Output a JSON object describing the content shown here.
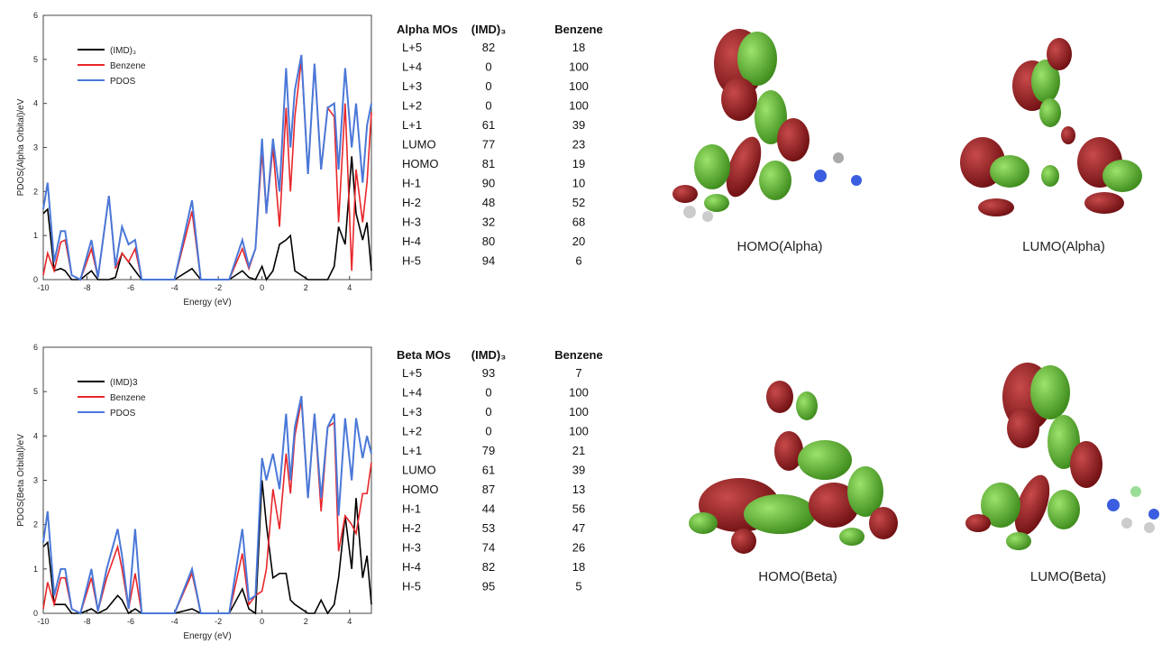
{
  "chart_data": [
    {
      "type": "line",
      "xlabel": "Energy (eV)",
      "ylabel": "PDOS(Alpha Orbital)/eV",
      "xlim": [
        -10,
        5
      ],
      "ylim": [
        0,
        6
      ],
      "xticks": [
        -10,
        -8,
        -6,
        -4,
        -2,
        0,
        2,
        4
      ],
      "yticks": [
        0,
        1,
        2,
        3,
        4,
        5,
        6
      ],
      "legend": "upper left",
      "x": [
        -10,
        -9.8,
        -9.5,
        -9.2,
        -9,
        -8.7,
        -8.3,
        -7.8,
        -7.5,
        -7,
        -6.7,
        -6.4,
        -6.1,
        -5.8,
        -5.5,
        -4,
        -3.2,
        -2.8,
        -1.5,
        -0.9,
        -0.6,
        -0.3,
        0,
        0.2,
        0.5,
        0.8,
        1.1,
        1.3,
        1.5,
        1.8,
        2.1,
        2.4,
        2.7,
        3,
        3.3,
        3.5,
        3.8,
        4.1,
        4.3,
        4.6,
        4.8,
        5
      ],
      "series": [
        {
          "name": "(IMD)₃",
          "color": "#000000",
          "values": [
            1.5,
            1.6,
            0.2,
            0.25,
            0.2,
            0,
            0,
            0.2,
            0,
            0,
            0.05,
            0.6,
            0.4,
            0.2,
            0,
            0,
            0.25,
            0,
            0,
            0.2,
            0.05,
            0,
            0.3,
            0,
            0.2,
            0.8,
            0.9,
            1.0,
            0.2,
            0.1,
            0,
            0,
            0,
            0,
            0.3,
            1.2,
            0.8,
            2.8,
            1.5,
            0.9,
            1.3,
            0.2
          ]
        },
        {
          "name": "Benzene",
          "color": "#e8262a",
          "values": [
            0.1,
            0.6,
            0.2,
            0.85,
            0.9,
            0.1,
            0,
            0.7,
            0.05,
            1.9,
            0.25,
            0.6,
            0.4,
            0.7,
            0,
            0,
            1.55,
            0,
            0,
            0.7,
            0.25,
            0.7,
            2.9,
            1.5,
            3.0,
            1.2,
            3.9,
            2.0,
            3.7,
            5.0,
            2.4,
            4.9,
            2.5,
            3.9,
            3.7,
            1.3,
            4.0,
            0.2,
            2.5,
            1.3,
            2.2,
            3.8
          ]
        },
        {
          "name": "PDOS",
          "color": "#4a78d8",
          "values": [
            1.6,
            2.2,
            0.4,
            1.1,
            1.1,
            0.1,
            0,
            0.9,
            0.05,
            1.9,
            0.3,
            1.2,
            0.8,
            0.9,
            0,
            0,
            1.8,
            0,
            0,
            0.9,
            0.3,
            0.7,
            3.2,
            1.5,
            3.2,
            2.0,
            4.8,
            3.0,
            4.3,
            5.1,
            2.4,
            4.9,
            2.5,
            3.9,
            4.0,
            2.5,
            4.8,
            3.0,
            4.0,
            2.2,
            3.5,
            4.0
          ]
        }
      ]
    },
    {
      "type": "line",
      "xlabel": "Energy (eV)",
      "ylabel": "PDOS(Beta Orbital)/eV",
      "xlim": [
        -10,
        5
      ],
      "ylim": [
        0,
        6
      ],
      "xticks": [
        -10,
        -8,
        -6,
        -4,
        -2,
        0,
        2,
        4
      ],
      "yticks": [
        0,
        1,
        2,
        3,
        4,
        5,
        6
      ],
      "legend": "upper left",
      "x": [
        -10,
        -9.8,
        -9.5,
        -9.2,
        -9,
        -8.7,
        -8.3,
        -7.8,
        -7.5,
        -7.1,
        -6.6,
        -6.4,
        -6.1,
        -5.8,
        -5.5,
        -4,
        -3.2,
        -2.8,
        -1.5,
        -0.9,
        -0.6,
        -0.3,
        0,
        0.2,
        0.5,
        0.8,
        1.1,
        1.3,
        1.5,
        1.8,
        2.1,
        2.4,
        2.7,
        3,
        3.3,
        3.5,
        3.8,
        4.1,
        4.3,
        4.6,
        4.8,
        5
      ],
      "series": [
        {
          "name": "(IMD)3",
          "color": "#000000",
          "values": [
            1.5,
            1.6,
            0.2,
            0.2,
            0.2,
            0,
            0,
            0.1,
            0,
            0.1,
            0.4,
            0.3,
            0,
            0.1,
            0,
            0,
            0.1,
            0,
            0,
            0.55,
            0.1,
            0,
            3.0,
            2.0,
            0.8,
            0.9,
            0.9,
            0.3,
            0.2,
            0.1,
            0,
            0,
            0.3,
            0,
            0.2,
            0.8,
            2.2,
            1.0,
            2.6,
            0.8,
            1.3,
            0.2
          ]
        },
        {
          "name": "Benzene",
          "color": "#e8262a",
          "values": [
            0.1,
            0.7,
            0.2,
            0.8,
            0.8,
            0.1,
            0,
            0.8,
            0.05,
            0.8,
            1.5,
            1.0,
            0.1,
            0.9,
            0,
            0,
            0.9,
            0,
            0,
            1.35,
            0.2,
            0.4,
            0.5,
            1.0,
            2.8,
            1.9,
            3.6,
            2.7,
            4.0,
            4.8,
            2.6,
            4.5,
            2.3,
            4.2,
            4.3,
            1.4,
            2.2,
            2.0,
            1.8,
            2.7,
            2.7,
            3.4
          ]
        },
        {
          "name": "PDOS",
          "color": "#4a78d8",
          "values": [
            1.6,
            2.3,
            0.4,
            1.0,
            1.0,
            0.1,
            0,
            1.0,
            0.05,
            1.0,
            1.9,
            1.3,
            0.1,
            1.9,
            0,
            0,
            1.0,
            0,
            0,
            1.9,
            0.3,
            0.4,
            3.5,
            3.0,
            3.6,
            2.8,
            4.5,
            3.0,
            4.2,
            4.9,
            2.6,
            4.5,
            2.6,
            4.2,
            4.5,
            2.2,
            4.4,
            3.0,
            4.4,
            3.5,
            4.0,
            3.6
          ]
        }
      ]
    }
  ],
  "tables": [
    {
      "header": [
        "Alpha MOs",
        "(IMD)₃",
        "Benzene"
      ],
      "rows": [
        [
          "L+5",
          82,
          18
        ],
        [
          "L+4",
          0,
          100
        ],
        [
          "L+3",
          0,
          100
        ],
        [
          "L+2",
          0,
          100
        ],
        [
          "L+1",
          61,
          39
        ],
        [
          "LUMO",
          77,
          23
        ],
        [
          "HOMO",
          81,
          19
        ],
        [
          "H-1",
          90,
          10
        ],
        [
          "H-2",
          48,
          52
        ],
        [
          "H-3",
          32,
          68
        ],
        [
          "H-4",
          80,
          20
        ],
        [
          "H-5",
          94,
          6
        ]
      ]
    },
    {
      "header": [
        "Beta MOs",
        "(IMD)₃",
        "Benzene"
      ],
      "rows": [
        [
          "L+5",
          93,
          7
        ],
        [
          "L+4",
          0,
          100
        ],
        [
          "L+3",
          0,
          100
        ],
        [
          "L+2",
          0,
          100
        ],
        [
          "L+1",
          79,
          21
        ],
        [
          "LUMO",
          61,
          39
        ],
        [
          "HOMO",
          87,
          13
        ],
        [
          "H-1",
          44,
          56
        ],
        [
          "H-2",
          53,
          47
        ],
        [
          "H-3",
          74,
          26
        ],
        [
          "H-4",
          82,
          18
        ],
        [
          "H-5",
          95,
          5
        ]
      ]
    }
  ],
  "orbitals": [
    "HOMO(Alpha)",
    "LUMO(Alpha)",
    "HOMO(Beta)",
    "LUMO(Beta)"
  ]
}
